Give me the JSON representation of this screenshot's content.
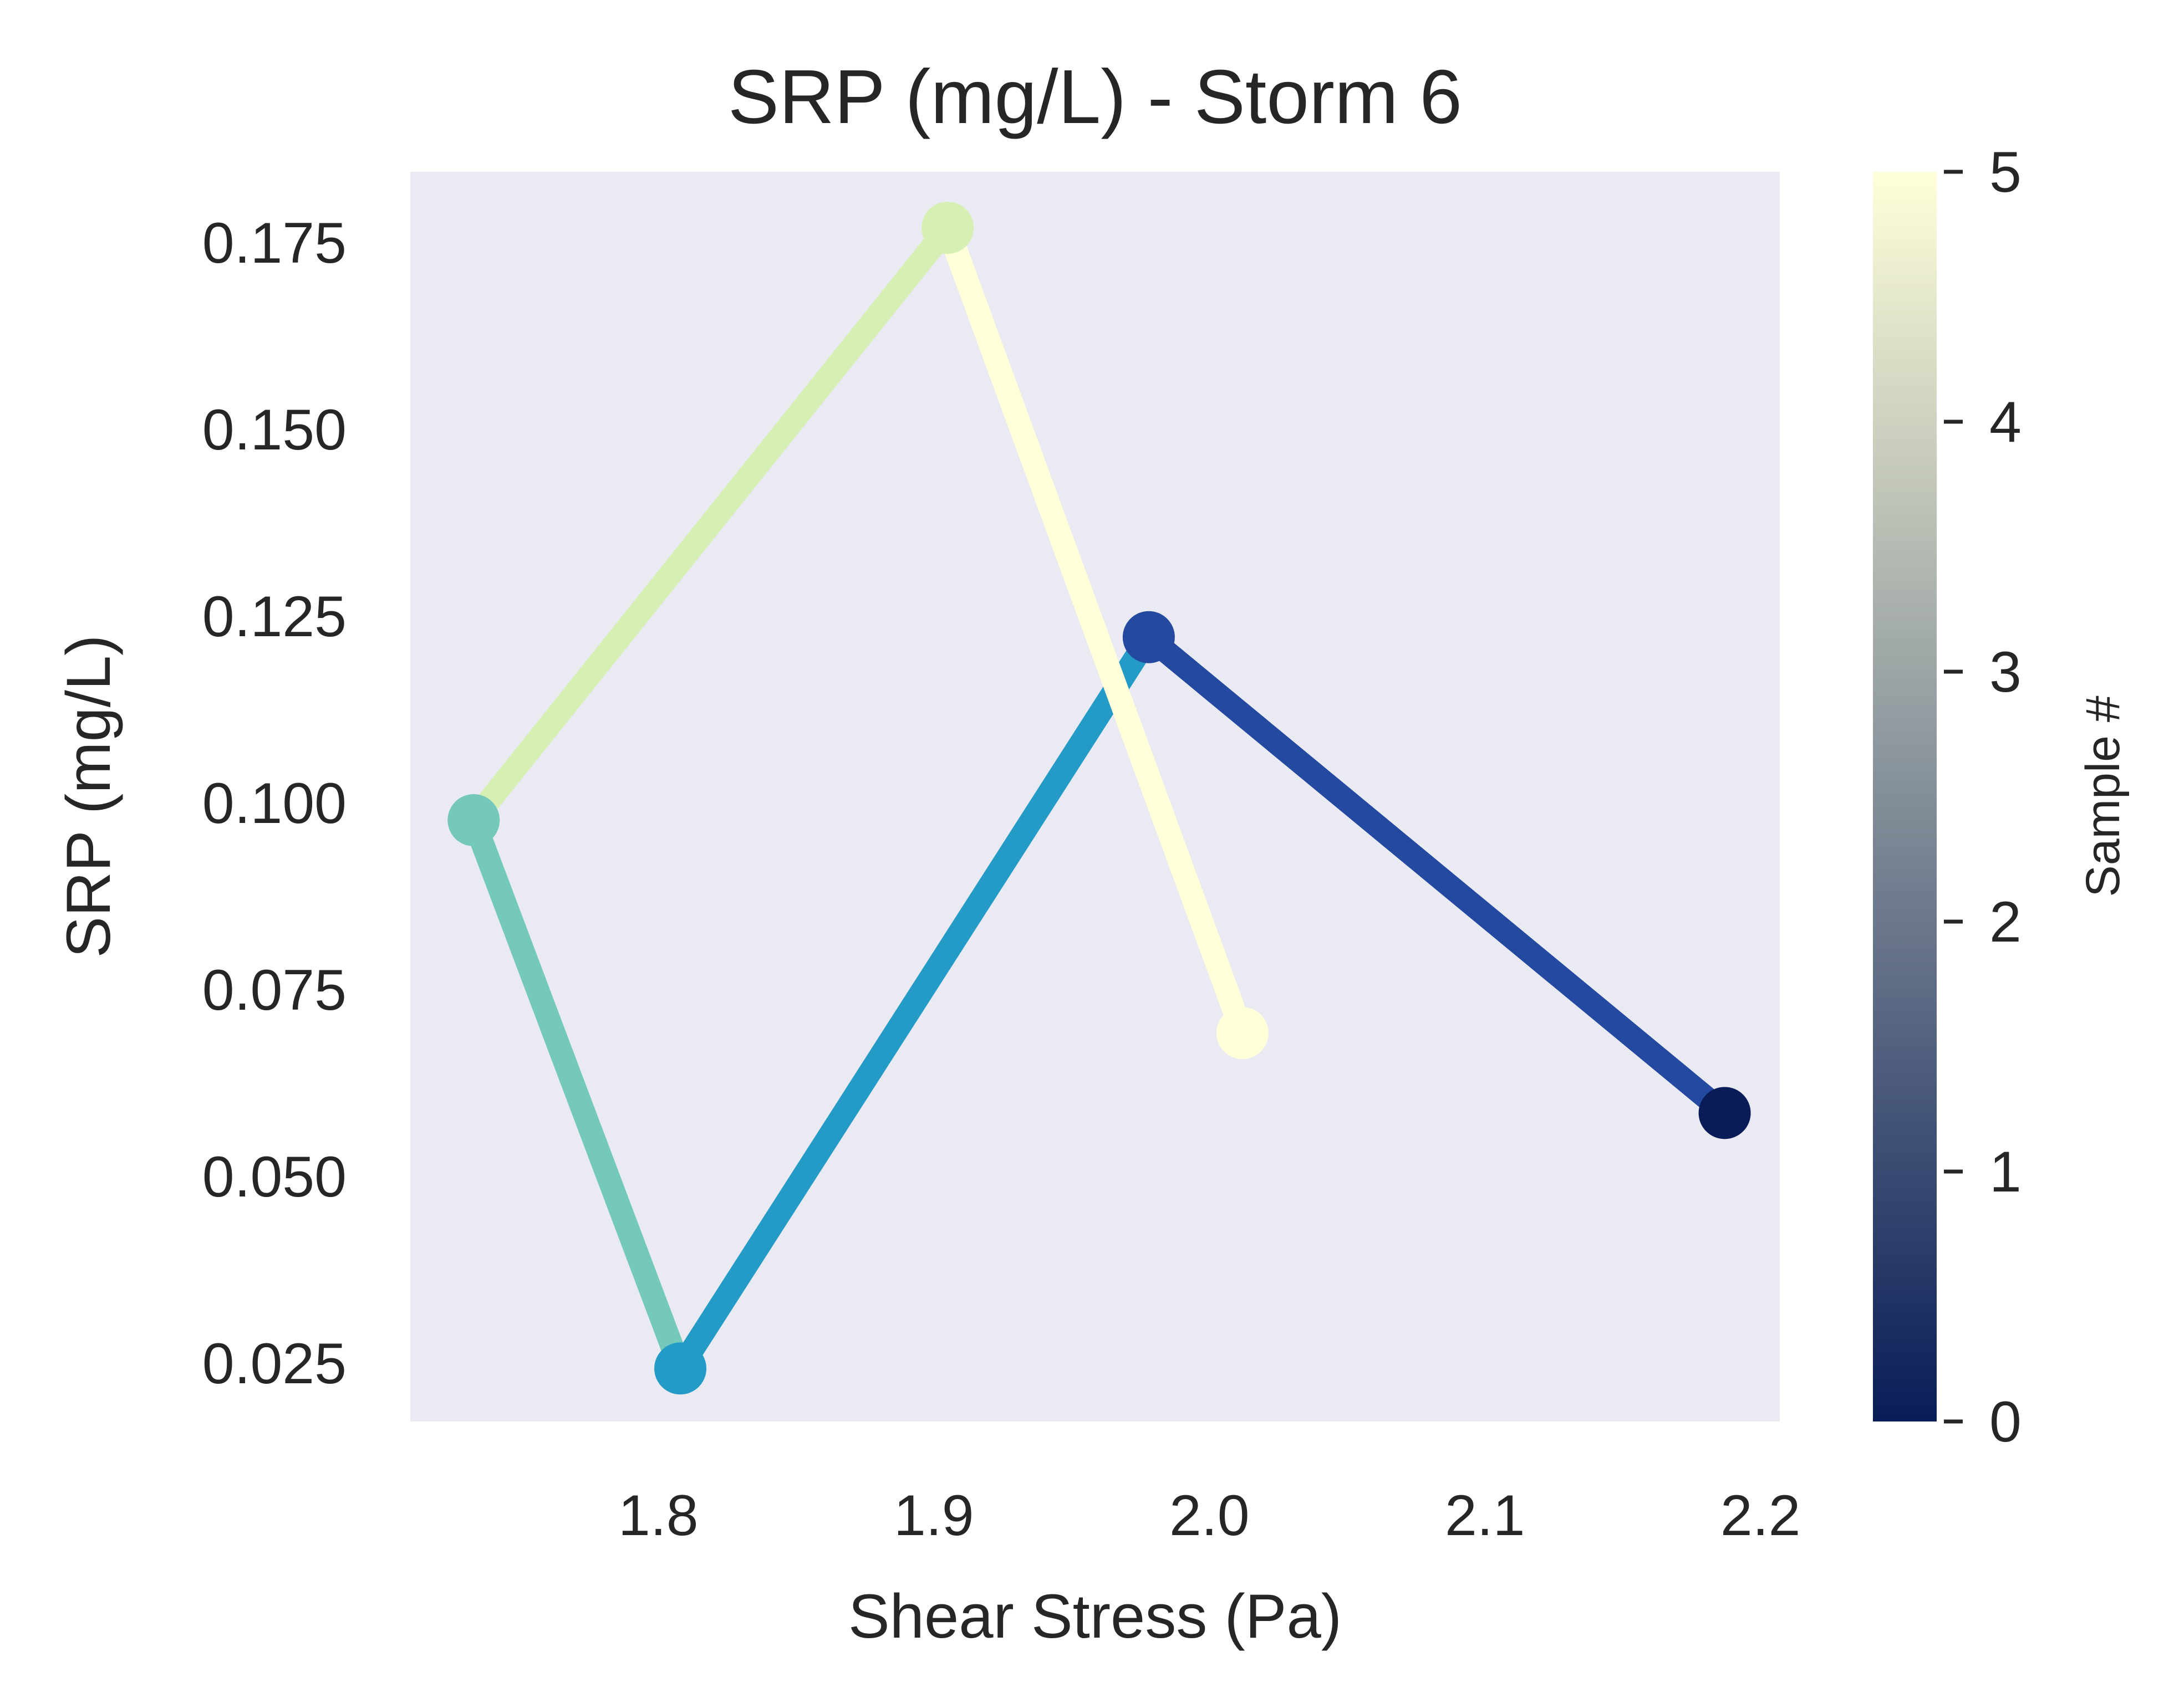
{
  "chart_data": {
    "type": "line",
    "title": "SRP (mg/L) - Storm 6",
    "xlabel": "Shear Stress (Pa)",
    "ylabel": "SRP (mg/L)",
    "xlim": [
      1.71,
      2.207
    ],
    "ylim": [
      0.0172,
      0.1845
    ],
    "x_ticks": [
      1.8,
      1.9,
      2.0,
      2.1,
      2.2
    ],
    "x_tick_labels": [
      "1.8",
      "1.9",
      "2.0",
      "2.1",
      "2.2"
    ],
    "y_ticks": [
      0.025,
      0.05,
      0.075,
      0.1,
      0.125,
      0.15,
      0.175
    ],
    "y_tick_labels": [
      "0.025",
      "0.050",
      "0.075",
      "0.100",
      "0.125",
      "0.150",
      "0.175"
    ],
    "grid": false,
    "background": "#eaeaf2",
    "colormap": "YlGnBu_r",
    "colorbar": {
      "label": "Sample #",
      "min": 0,
      "max": 5,
      "ticks": [
        "0",
        "1",
        "2",
        "3",
        "4",
        "5"
      ],
      "stops": [
        "#081d58",
        "#253494",
        "#225ea8",
        "#1d91c0",
        "#41b6c4",
        "#7fcdbb",
        "#c7e9b4",
        "#edf8b1",
        "#ffffd9"
      ]
    },
    "points": [
      {
        "sample": 0,
        "x": 2.187,
        "y": 0.0585,
        "color": "#081d58"
      },
      {
        "sample": 1,
        "x": 1.978,
        "y": 0.1222,
        "color": "#2349a0"
      },
      {
        "sample": 2,
        "x": 1.808,
        "y": 0.0243,
        "color": "#249bc7"
      },
      {
        "sample": 3,
        "x": 1.733,
        "y": 0.0977,
        "color": "#74c9bb"
      },
      {
        "sample": 4,
        "x": 1.905,
        "y": 0.177,
        "color": "#d6efb3"
      },
      {
        "sample": 5,
        "x": 2.012,
        "y": 0.0692,
        "color": "#ffffd9"
      }
    ]
  }
}
